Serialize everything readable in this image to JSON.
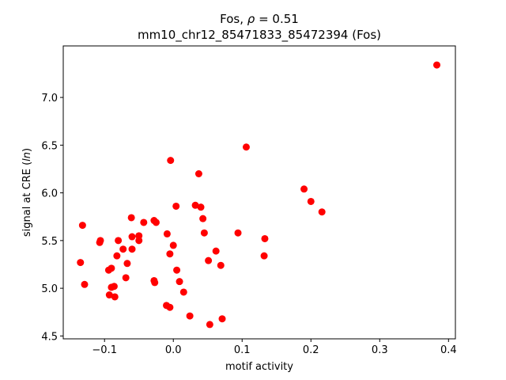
{
  "chart_data": {
    "type": "scatter",
    "title_line1": "Fos, ρ = 0.51",
    "title_line2": "mm10_chr12_85471833_85472394 (Fos)",
    "xlabel": "motif activity",
    "ylabel": "signal at CRE (ln)",
    "xlim": [
      -0.16,
      0.41
    ],
    "ylim": [
      4.47,
      7.54
    ],
    "xticks": [
      -0.1,
      0.0,
      0.1,
      0.2,
      0.3,
      0.4
    ],
    "xtick_labels": [
      "−0.1",
      "0.0",
      "0.1",
      "0.2",
      "0.3",
      "0.4"
    ],
    "yticks": [
      4.5,
      5.0,
      5.5,
      6.0,
      6.5,
      7.0
    ],
    "ytick_labels": [
      "4.5",
      "5.0",
      "5.5",
      "6.0",
      "6.5",
      "7.0"
    ],
    "grid": false,
    "marker_color": "#ff0000",
    "points": [
      {
        "x": 0.383,
        "y": 7.34
      },
      {
        "x": 0.106,
        "y": 6.48
      },
      {
        "x": -0.004,
        "y": 6.34
      },
      {
        "x": 0.037,
        "y": 6.2
      },
      {
        "x": 0.19,
        "y": 6.04
      },
      {
        "x": 0.2,
        "y": 5.91
      },
      {
        "x": 0.216,
        "y": 5.8
      },
      {
        "x": 0.032,
        "y": 5.87
      },
      {
        "x": 0.04,
        "y": 5.85
      },
      {
        "x": 0.004,
        "y": 5.86
      },
      {
        "x": -0.061,
        "y": 5.74
      },
      {
        "x": 0.043,
        "y": 5.73
      },
      {
        "x": -0.043,
        "y": 5.69
      },
      {
        "x": -0.028,
        "y": 5.71
      },
      {
        "x": -0.025,
        "y": 5.69
      },
      {
        "x": -0.132,
        "y": 5.66
      },
      {
        "x": 0.045,
        "y": 5.58
      },
      {
        "x": 0.094,
        "y": 5.58
      },
      {
        "x": -0.009,
        "y": 5.57
      },
      {
        "x": -0.06,
        "y": 5.54
      },
      {
        "x": -0.05,
        "y": 5.55
      },
      {
        "x": -0.05,
        "y": 5.5
      },
      {
        "x": -0.106,
        "y": 5.5
      },
      {
        "x": -0.107,
        "y": 5.48
      },
      {
        "x": -0.08,
        "y": 5.5
      },
      {
        "x": 0.133,
        "y": 5.52
      },
      {
        "x": 0.0,
        "y": 5.45
      },
      {
        "x": -0.06,
        "y": 5.41
      },
      {
        "x": -0.073,
        "y": 5.41
      },
      {
        "x": 0.062,
        "y": 5.39
      },
      {
        "x": -0.005,
        "y": 5.36
      },
      {
        "x": -0.082,
        "y": 5.34
      },
      {
        "x": 0.132,
        "y": 5.34
      },
      {
        "x": 0.051,
        "y": 5.29
      },
      {
        "x": -0.135,
        "y": 5.27
      },
      {
        "x": -0.067,
        "y": 5.26
      },
      {
        "x": 0.069,
        "y": 5.24
      },
      {
        "x": -0.09,
        "y": 5.21
      },
      {
        "x": -0.094,
        "y": 5.19
      },
      {
        "x": 0.005,
        "y": 5.19
      },
      {
        "x": -0.069,
        "y": 5.11
      },
      {
        "x": -0.028,
        "y": 5.08
      },
      {
        "x": -0.027,
        "y": 5.06
      },
      {
        "x": 0.009,
        "y": 5.07
      },
      {
        "x": -0.129,
        "y": 5.04
      },
      {
        "x": -0.086,
        "y": 5.02
      },
      {
        "x": -0.09,
        "y": 5.01
      },
      {
        "x": 0.015,
        "y": 4.96
      },
      {
        "x": -0.093,
        "y": 4.93
      },
      {
        "x": -0.085,
        "y": 4.91
      },
      {
        "x": -0.01,
        "y": 4.82
      },
      {
        "x": -0.005,
        "y": 4.8
      },
      {
        "x": 0.024,
        "y": 4.71
      },
      {
        "x": 0.071,
        "y": 4.68
      },
      {
        "x": 0.053,
        "y": 4.62
      }
    ]
  }
}
